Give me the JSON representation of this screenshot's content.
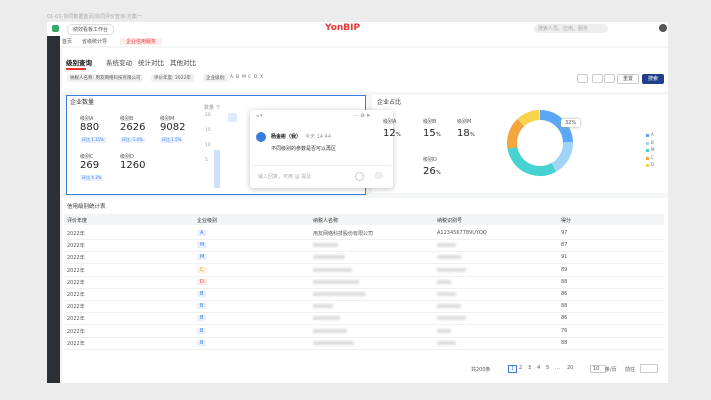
{
  "caption": "01-01-协同数据首页/协同评价查询-方案一",
  "topbar": {
    "app_tab": "绩效看板工作台",
    "brand": "YonBIP",
    "search": "搜索人员、应用、服务"
  },
  "nav_tabs": [
    "首页",
    "省级统计导",
    "企业信用服务"
  ],
  "page_tabs": [
    "级别查询",
    "系统变动",
    "统计对比",
    "其他对比"
  ],
  "filters": [
    "纳税人名称: 用友网络科技有限公司",
    "评价年度: 2022年",
    "企业级别:"
  ],
  "grades": [
    "A",
    "B",
    "M",
    "C",
    "D",
    "X"
  ],
  "buttons": [
    "重置",
    "搜索"
  ],
  "count_card": {
    "title": "企业数量",
    "stats": [
      {
        "label": "级别A",
        "value": "880",
        "change": "环比 1.15%"
      },
      {
        "label": "级别B",
        "value": "2626",
        "change": "环比 -1.4%"
      },
      {
        "label": "级别M",
        "value": "9082",
        "change": "环比 1.5%"
      },
      {
        "label": "级别C",
        "value": "269",
        "change": "环比 4.3%"
      },
      {
        "label": "级别D",
        "value": "1260"
      }
    ],
    "axis_title": "数量 个",
    "axis_labels": [
      "20",
      "15",
      "10",
      "5"
    ]
  },
  "comment": {
    "author": "杨金彬（我）",
    "time": "今天 14:44",
    "text": "不同级别的参数是否可以再区",
    "placeholder": "输入回复，可用 @ 提及"
  },
  "share_card": {
    "title": "企业占比",
    "stats": [
      {
        "label": "级别A",
        "value": "12",
        "unit": "%"
      },
      {
        "label": "级别B",
        "value": "15",
        "unit": "%"
      },
      {
        "label": "级别M",
        "value": "18",
        "unit": "%"
      },
      {
        "label": "级别D",
        "value": "26",
        "unit": "%"
      }
    ],
    "tooltip": "32%",
    "legend": [
      "A",
      "B",
      "M",
      "C",
      "D"
    ]
  },
  "table": {
    "title": "信用级别统计表",
    "headers": [
      "评价年度",
      "企业级别",
      "纳税人名称",
      "纳税识别号",
      "得分"
    ],
    "rows": [
      {
        "year": "2022年",
        "grade": "A",
        "name": "用友网络科技股份有限公司",
        "id": "A1234567789UYDQ",
        "score": "97"
      },
      {
        "year": "2022年",
        "grade": "M",
        "score": "87"
      },
      {
        "year": "2022年",
        "grade": "M",
        "score": "91"
      },
      {
        "year": "2022年",
        "grade": "C",
        "score": "89"
      },
      {
        "year": "2022年",
        "grade": "D",
        "score": "88"
      },
      {
        "year": "2022年",
        "grade": "B",
        "score": "86"
      },
      {
        "year": "2022年",
        "grade": "B",
        "score": "88"
      },
      {
        "year": "2022年",
        "grade": "B",
        "score": "86"
      },
      {
        "year": "2022年",
        "grade": "B",
        "score": "76"
      },
      {
        "year": "2022年",
        "grade": "B",
        "score": "88"
      }
    ]
  },
  "pagination": {
    "total": "共200条",
    "pages": [
      "1",
      "2",
      "3",
      "4",
      "5",
      "...",
      "20"
    ],
    "page_size": "10",
    "per_page": "条/页",
    "goto": "前往"
  }
}
